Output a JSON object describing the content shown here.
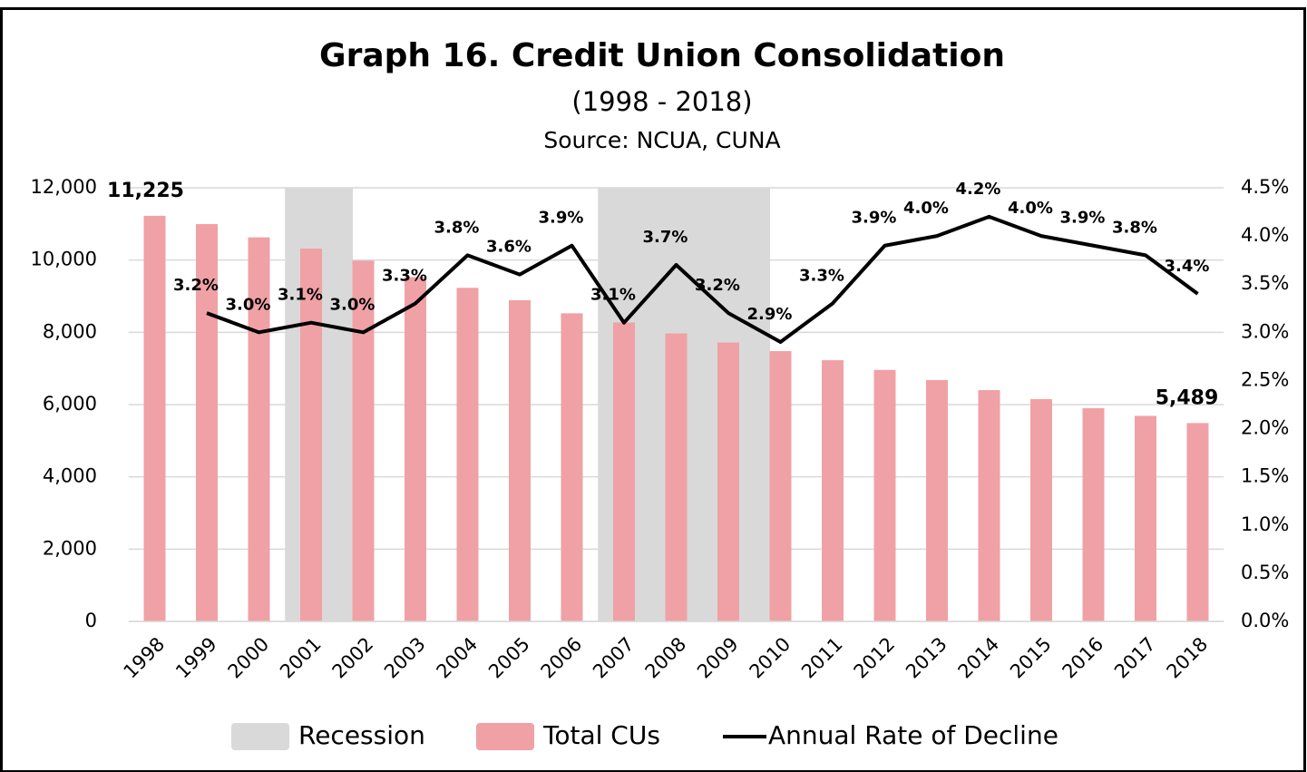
{
  "chart_data": {
    "type": "bar_line",
    "title": "Graph 16. Credit Union Consolidation",
    "subtitle": "(1998 - 2018)",
    "source": "Source: NCUA, CUNA",
    "categories": [
      "1998",
      "1999",
      "2000",
      "2001",
      "2002",
      "2003",
      "2004",
      "2005",
      "2006",
      "2007",
      "2008",
      "2009",
      "2010",
      "2011",
      "2012",
      "2013",
      "2014",
      "2015",
      "2016",
      "2017",
      "2018"
    ],
    "series": [
      {
        "name": "Recession",
        "color": "#d9d9d9",
        "kind": "shade",
        "values": [
          null,
          null,
          null,
          12000,
          null,
          null,
          null,
          null,
          null,
          12000,
          12000,
          12000,
          null,
          null,
          null,
          null,
          null,
          null,
          null,
          null,
          null
        ]
      },
      {
        "name": "Total CUs",
        "color": "#f0a1a5",
        "kind": "bar",
        "values": [
          11225,
          10995,
          10628,
          10316,
          9984,
          9529,
          9232,
          8890,
          8527,
          8272,
          7970,
          7718,
          7480,
          7228,
          6960,
          6681,
          6400,
          6152,
          5900,
          5688,
          5489
        ],
        "value_labels": [
          "11,225",
          null,
          null,
          null,
          null,
          null,
          null,
          null,
          null,
          null,
          null,
          null,
          null,
          null,
          null,
          null,
          null,
          null,
          null,
          null,
          "5,489"
        ]
      },
      {
        "name": "Annual Rate of Decline",
        "color": "#000000",
        "kind": "line",
        "axis": "y2",
        "values": [
          null,
          3.2,
          3.0,
          3.1,
          3.0,
          3.3,
          3.8,
          3.6,
          3.9,
          3.1,
          3.7,
          3.2,
          2.9,
          3.3,
          3.9,
          4.0,
          4.2,
          4.0,
          3.9,
          3.8,
          3.4
        ],
        "value_labels": [
          null,
          "3.2%",
          "3.0%",
          "3.1%",
          "3.0%",
          "3.3%",
          "3.8%",
          "3.6%",
          "3.9%",
          "3.1%",
          "3.7%",
          "3.2%",
          "2.9%",
          "3.3%",
          "3.9%",
          "4.0%",
          "4.2%",
          "4.0%",
          "3.9%",
          "3.8%",
          "3.4%"
        ]
      }
    ],
    "ylim": [
      0,
      12000
    ],
    "yticks": [
      0,
      {
        "value": 2000,
        "label": "2,000"
      },
      {
        "value": 4000,
        "label": "4,000"
      },
      {
        "value": 6000,
        "label": "6,000"
      },
      {
        "value": 8000,
        "label": "8,000"
      },
      {
        "value": 10000,
        "label": "10,000"
      },
      {
        "value": 12000,
        "label": "12,000"
      }
    ],
    "y2lim": [
      0,
      4.5
    ],
    "y2ticks": [
      {
        "value": 0,
        "label": "0.0%"
      },
      {
        "value": 0.5,
        "label": "0.5%"
      },
      {
        "value": 1,
        "label": "1.0%"
      },
      {
        "value": 1.5,
        "label": "1.5%"
      },
      {
        "value": 2,
        "label": "2.0%"
      },
      {
        "value": 2.5,
        "label": "2.5%"
      },
      {
        "value": 3,
        "label": "3.0%"
      },
      {
        "value": 3.5,
        "label": "3.5%"
      },
      {
        "value": 4,
        "label": "4.0%"
      },
      {
        "value": 4.5,
        "label": "4.5%"
      }
    ],
    "legend": "bottom"
  }
}
